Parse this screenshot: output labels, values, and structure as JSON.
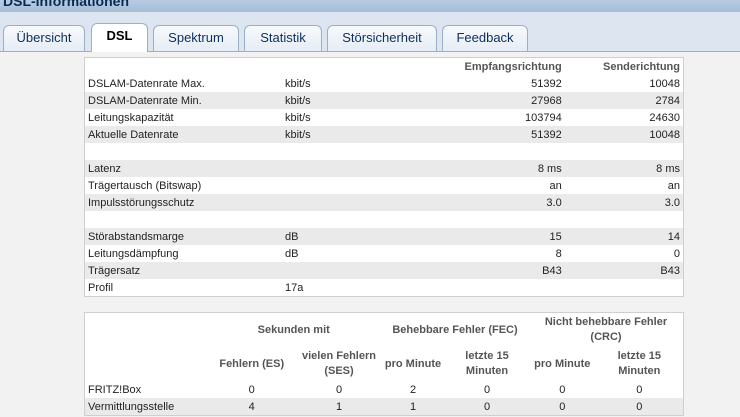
{
  "page_title": "DSL-Informationen",
  "tabs": [
    {
      "label": "Übersicht",
      "active": false
    },
    {
      "label": "DSL",
      "active": true
    },
    {
      "label": "Spektrum",
      "active": false
    },
    {
      "label": "Statistik",
      "active": false
    },
    {
      "label": "Störsicherheit",
      "active": false
    },
    {
      "label": "Feedback",
      "active": false
    }
  ],
  "dsl_table": {
    "headers": {
      "receive": "Empfangsrichtung",
      "send": "Senderichtung"
    },
    "rows": [
      {
        "label": "DSLAM-Datenrate Max.",
        "unit": "kbit/s",
        "rx": "51392",
        "tx": "10048"
      },
      {
        "label": "DSLAM-Datenrate Min.",
        "unit": "kbit/s",
        "rx": "27968",
        "tx": "2784"
      },
      {
        "label": "Leitungskapazität",
        "unit": "kbit/s",
        "rx": "103794",
        "tx": "24630"
      },
      {
        "label": "Aktuelle Datenrate",
        "unit": "kbit/s",
        "rx": "51392",
        "tx": "10048"
      },
      {
        "label": "",
        "unit": "",
        "rx": "",
        "tx": ""
      },
      {
        "label": "Latenz",
        "unit": "",
        "rx": "8 ms",
        "tx": "8 ms"
      },
      {
        "label": "Trägertausch (Bitswap)",
        "unit": "",
        "rx": "an",
        "tx": "an"
      },
      {
        "label": "Impulsstörungsschutz",
        "unit": "",
        "rx": "3.0",
        "tx": "3.0"
      },
      {
        "label": "",
        "unit": "",
        "rx": "",
        "tx": ""
      },
      {
        "label": "Störabstandsmarge",
        "unit": "dB",
        "rx": "15",
        "tx": "14"
      },
      {
        "label": "Leitungsdämpfung",
        "unit": "dB",
        "rx": "8",
        "tx": "0"
      },
      {
        "label": "Trägersatz",
        "unit": "",
        "rx": "B43",
        "tx": "B43"
      },
      {
        "label": "Profil",
        "unit": "17a",
        "rx": "",
        "tx": ""
      }
    ]
  },
  "error_table": {
    "group_headers": {
      "seconds": "Sekunden mit",
      "fec": "Behebbare Fehler (FEC)",
      "crc": "Nicht behebbare Fehler (CRC)"
    },
    "sub_headers": {
      "es": "Fehlern (ES)",
      "ses": "vielen Fehlern (SES)",
      "fec_min": "pro Minute",
      "fec_15": "letzte 15 Minuten",
      "crc_min": "pro Minute",
      "crc_15": "letzte 15 Minuten"
    },
    "rows": [
      {
        "label": "FRITZ!Box",
        "es": "0",
        "ses": "0",
        "fec_min": "2",
        "fec_15": "0",
        "crc_min": "0",
        "crc_15": "0"
      },
      {
        "label": "Vermittlungsstelle",
        "es": "4",
        "ses": "1",
        "fec_min": "1",
        "fec_15": "0",
        "crc_min": "0",
        "crc_15": "0"
      }
    ]
  }
}
